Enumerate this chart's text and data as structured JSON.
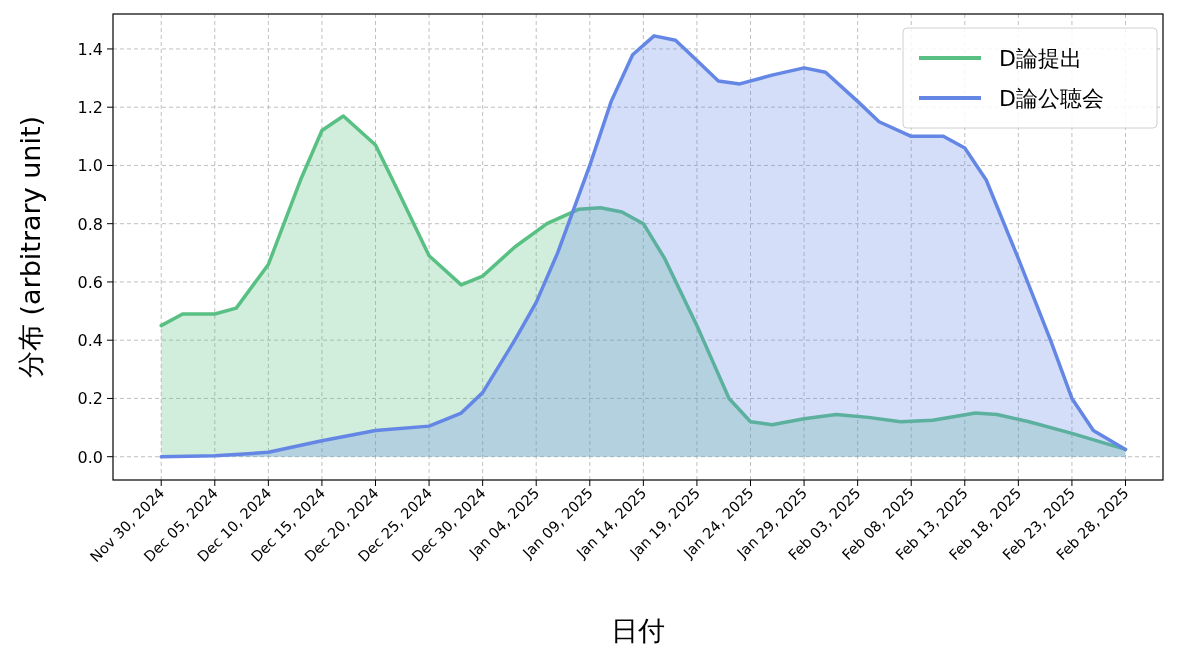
{
  "chart_data": {
    "type": "area",
    "xlabel": "日付",
    "ylabel": "分布 (arbitrary unit)",
    "xlim": [
      "2024-11-25T12:00",
      "2025-03-03T12:00"
    ],
    "ylim": [
      -0.08,
      1.52
    ],
    "xticks": [
      {
        "value": "2024-11-30",
        "label": "Nov 30, 2024"
      },
      {
        "value": "2024-12-05",
        "label": "Dec 05, 2024"
      },
      {
        "value": "2024-12-10",
        "label": "Dec 10, 2024"
      },
      {
        "value": "2024-12-15",
        "label": "Dec 15, 2024"
      },
      {
        "value": "2024-12-20",
        "label": "Dec 20, 2024"
      },
      {
        "value": "2024-12-25",
        "label": "Dec 25, 2024"
      },
      {
        "value": "2024-12-30",
        "label": "Dec 30, 2024"
      },
      {
        "value": "2025-01-04",
        "label": "Jan 04, 2025"
      },
      {
        "value": "2025-01-09",
        "label": "Jan 09, 2025"
      },
      {
        "value": "2025-01-14",
        "label": "Jan 14, 2025"
      },
      {
        "value": "2025-01-19",
        "label": "Jan 19, 2025"
      },
      {
        "value": "2025-01-24",
        "label": "Jan 24, 2025"
      },
      {
        "value": "2025-01-29",
        "label": "Jan 29, 2025"
      },
      {
        "value": "2025-02-03",
        "label": "Feb 03, 2025"
      },
      {
        "value": "2025-02-08",
        "label": "Feb 08, 2025"
      },
      {
        "value": "2025-02-13",
        "label": "Feb 13, 2025"
      },
      {
        "value": "2025-02-18",
        "label": "Feb 18, 2025"
      },
      {
        "value": "2025-02-23",
        "label": "Feb 23, 2025"
      },
      {
        "value": "2025-02-28",
        "label": "Feb 28, 2025"
      }
    ],
    "yticks": [
      {
        "value": 0,
        "label": "0.0"
      },
      {
        "value": 0.2,
        "label": "0.2"
      },
      {
        "value": 0.4,
        "label": "0.4"
      },
      {
        "value": 0.6,
        "label": "0.6"
      },
      {
        "value": 0.8,
        "label": "0.8"
      },
      {
        "value": 1.0,
        "label": "1.0"
      },
      {
        "value": 1.2,
        "label": "1.2"
      },
      {
        "value": 1.4,
        "label": "1.4"
      }
    ],
    "grid": true,
    "legend": "top right",
    "marker": "none",
    "line_style": "solid",
    "series": [
      {
        "name": "D論提出",
        "color": "#59c083",
        "x": [
          "2024-11-30",
          "2024-12-02",
          "2024-12-05",
          "2024-12-07",
          "2024-12-10",
          "2024-12-13",
          "2024-12-15",
          "2024-12-17",
          "2024-12-20",
          "2024-12-22",
          "2024-12-25",
          "2024-12-28",
          "2024-12-30",
          "2025-01-02",
          "2025-01-05",
          "2025-01-08",
          "2025-01-10",
          "2025-01-12",
          "2025-01-14",
          "2025-01-16",
          "2025-01-19",
          "2025-01-22",
          "2025-01-24",
          "2025-01-26",
          "2025-01-29",
          "2025-02-01",
          "2025-02-04",
          "2025-02-07",
          "2025-02-10",
          "2025-02-14",
          "2025-02-16",
          "2025-02-19",
          "2025-02-23",
          "2025-02-28"
        ],
        "values": [
          0.45,
          0.49,
          0.49,
          0.51,
          0.66,
          0.95,
          1.12,
          1.17,
          1.07,
          0.92,
          0.69,
          0.59,
          0.62,
          0.72,
          0.8,
          0.85,
          0.855,
          0.84,
          0.8,
          0.68,
          0.45,
          0.2,
          0.12,
          0.11,
          0.13,
          0.145,
          0.135,
          0.12,
          0.125,
          0.15,
          0.145,
          0.12,
          0.08,
          0.025
        ]
      },
      {
        "name": "D論公聴会",
        "color": "#6487e6",
        "x": [
          "2024-11-30",
          "2024-12-05",
          "2024-12-10",
          "2024-12-15",
          "2024-12-20",
          "2024-12-25",
          "2024-12-28",
          "2024-12-30",
          "2025-01-02",
          "2025-01-04",
          "2025-01-06",
          "2025-01-09",
          "2025-01-11",
          "2025-01-13",
          "2025-01-15",
          "2025-01-17",
          "2025-01-19",
          "2025-01-21",
          "2025-01-23",
          "2025-01-26",
          "2025-01-29",
          "2025-01-31",
          "2025-02-03",
          "2025-02-05",
          "2025-02-08",
          "2025-02-11",
          "2025-02-13",
          "2025-02-15",
          "2025-02-18",
          "2025-02-21",
          "2025-02-23",
          "2025-02-25",
          "2025-02-28"
        ],
        "values": [
          0,
          0.003,
          0.015,
          0.055,
          0.09,
          0.105,
          0.15,
          0.22,
          0.4,
          0.53,
          0.7,
          1.0,
          1.22,
          1.38,
          1.445,
          1.43,
          1.36,
          1.29,
          1.28,
          1.31,
          1.335,
          1.32,
          1.22,
          1.15,
          1.1,
          1.1,
          1.06,
          0.95,
          0.68,
          0.4,
          0.2,
          0.09,
          0.025
        ]
      }
    ]
  }
}
